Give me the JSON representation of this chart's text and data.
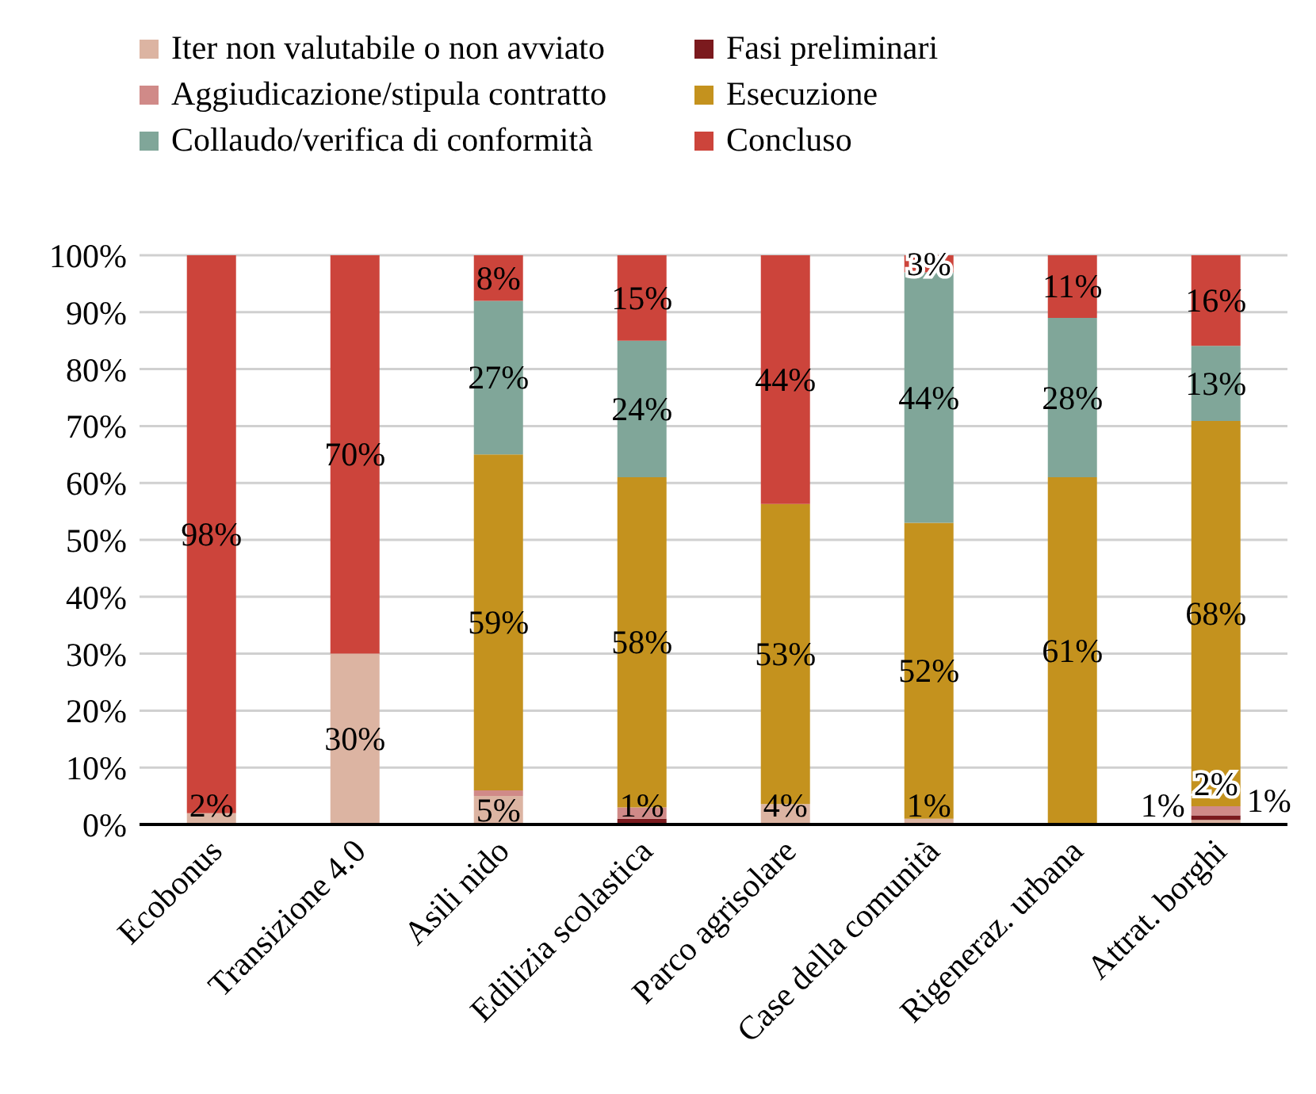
{
  "chart_data": {
    "type": "bar",
    "stacked": true,
    "categories": [
      "Ecobonus",
      "Transizione 4.0",
      "Asili nido",
      "Edilizia scolastica",
      "Parco agrisolare",
      "Case della comunità",
      "Rigeneraz. urbana",
      "Attrat. borghi"
    ],
    "series": [
      {
        "name": "Iter non valutabile o non avviato",
        "color": "#dcb4a2",
        "values": [
          2,
          30,
          5,
          0,
          3.6,
          1,
          0,
          0.8
        ],
        "value_labels": [
          "2%",
          "30%",
          "5%",
          null,
          "4%",
          "1%",
          null,
          "1%"
        ]
      },
      {
        "name": "Fasi preliminari",
        "color": "#7b1a1e",
        "values": [
          0,
          0,
          0,
          1,
          0,
          0,
          0,
          0.8
        ],
        "value_labels": [
          null,
          null,
          null,
          "1%",
          null,
          null,
          null,
          "1%"
        ]
      },
      {
        "name": "Aggiudicazione/stipula contratto",
        "color": "#d08a88",
        "values": [
          0,
          0,
          1,
          2,
          0,
          0,
          0,
          1.6
        ],
        "value_labels": [
          null,
          null,
          null,
          null,
          null,
          null,
          null,
          "2%"
        ]
      },
      {
        "name": "Esecuzione",
        "color": "#c4921e",
        "values": [
          0,
          0,
          59,
          58,
          52.7,
          52,
          61,
          67.7
        ],
        "value_labels": [
          null,
          null,
          "59%",
          "58%",
          "53%",
          "52%",
          "61%",
          "68%"
        ]
      },
      {
        "name": "Collaudo/verifica di conformità",
        "color": "#80a699",
        "values": [
          0,
          0,
          27,
          24,
          0,
          44,
          28,
          13.2
        ],
        "value_labels": [
          null,
          null,
          "27%",
          "24%",
          null,
          "44%",
          "28%",
          "13%"
        ]
      },
      {
        "name": "Concluso",
        "color": "#cc443b",
        "values": [
          98,
          70,
          8,
          15,
          43.7,
          3,
          11,
          15.9
        ],
        "value_labels": [
          "98%",
          "70%",
          "8%",
          "15%",
          "44%",
          "3%",
          "11%",
          "16%"
        ]
      }
    ],
    "ylim": [
      0,
      100
    ],
    "yticks": [
      {
        "value": 0,
        "label": "0%"
      },
      {
        "value": 10,
        "label": "10%"
      },
      {
        "value": 20,
        "label": "20%"
      },
      {
        "value": 30,
        "label": "30%"
      },
      {
        "value": 40,
        "label": "40%"
      },
      {
        "value": 50,
        "label": "50%"
      },
      {
        "value": 60,
        "label": "60%"
      },
      {
        "value": 70,
        "label": "70%"
      },
      {
        "value": 80,
        "label": "80%"
      },
      {
        "value": 90,
        "label": "90%"
      },
      {
        "value": 100,
        "label": "100%"
      }
    ],
    "grid": "y",
    "legend": "top"
  }
}
